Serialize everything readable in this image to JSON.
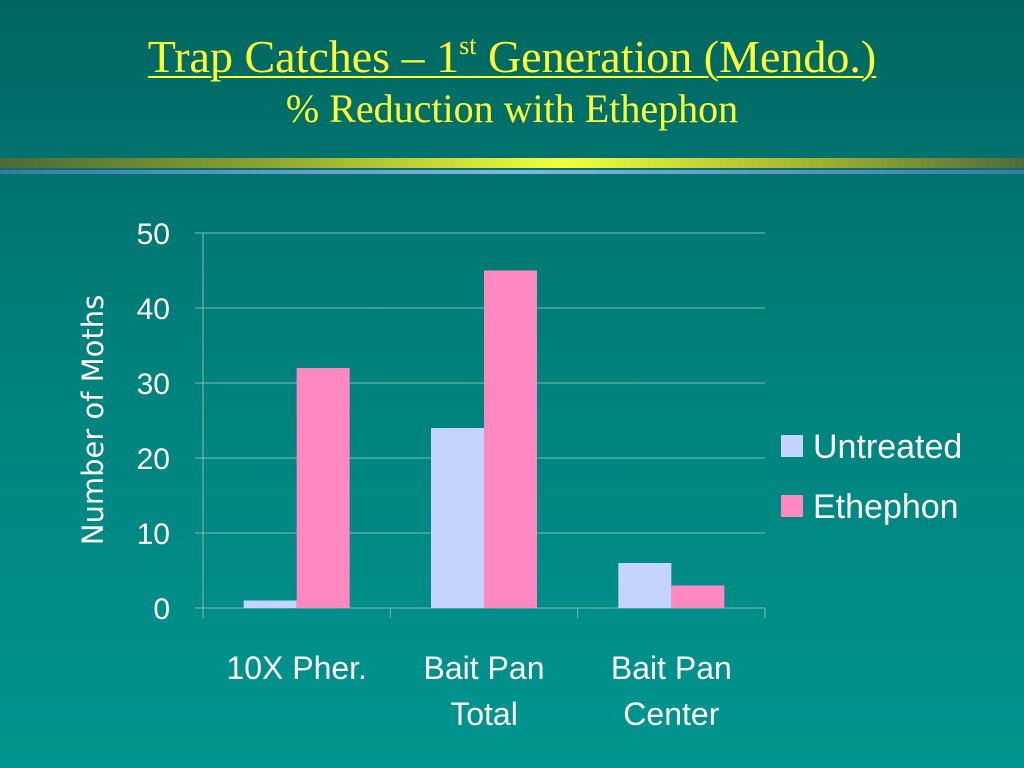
{
  "slide": {
    "title_main": "Trap Catches – 1",
    "title_sup": "st",
    "title_rest": " Generation (Mendo.)",
    "subtitle": "% Reduction with Ethephon"
  },
  "chart_data": {
    "type": "bar",
    "categories": [
      [
        "10X Pher."
      ],
      [
        "Bait Pan",
        "Total"
      ],
      [
        "Bait Pan",
        "Center"
      ]
    ],
    "series": [
      {
        "name": "Untreated",
        "values": [
          1,
          24,
          6
        ],
        "color": "#c4d4ff"
      },
      {
        "name": "Ethephon",
        "values": [
          32,
          45,
          3
        ],
        "color": "#ff88c0"
      }
    ],
    "ylabel": "Number of Moths",
    "xlabel": "",
    "ylim": [
      0,
      50
    ],
    "yticks": [
      0,
      10,
      20,
      30,
      40,
      50
    ],
    "grid": true,
    "legend_position": "right"
  }
}
